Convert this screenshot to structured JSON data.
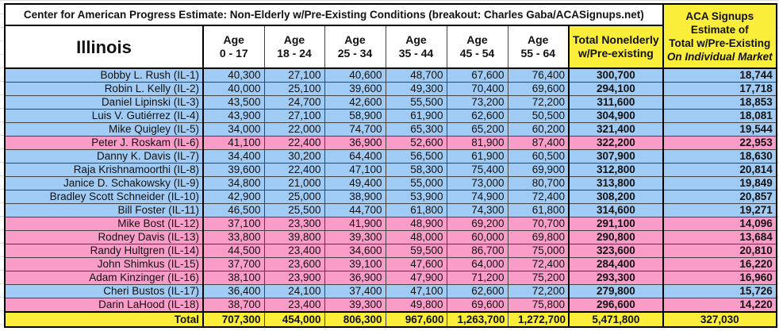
{
  "title": "Center for American Progress Estimate: Non-Elderly w/Pre-Existing Conditions (breakout: Charles Gaba/ACASignups.net)",
  "aca_header": [
    "ACA Signups",
    "Estimate of",
    "Total w/Pre-Existing",
    "On Individual Market"
  ],
  "headers": {
    "state": "Illinois",
    "ages": [
      [
        "Age",
        "0 - 17"
      ],
      [
        "Age",
        "18 - 24"
      ],
      [
        "Age",
        "25 - 34"
      ],
      [
        "Age",
        "35 - 44"
      ],
      [
        "Age",
        "45 - 54"
      ],
      [
        "Age",
        "55 - 64"
      ]
    ],
    "total": [
      "Total Nonelderly",
      "w/Pre-existing"
    ]
  },
  "colors": {
    "democrat": "#a0cbf4",
    "republican": "#f99cc8",
    "highlight": "#fbee3a"
  },
  "rows": [
    {
      "name": "Bobby L. Rush (IL-1)",
      "party": "blue",
      "values": [
        "40,300",
        "27,100",
        "40,600",
        "48,700",
        "67,600",
        "76,400"
      ],
      "total": "300,700",
      "aca": "18,744"
    },
    {
      "name": "Robin L. Kelly (IL-2)",
      "party": "blue",
      "values": [
        "40,000",
        "25,100",
        "39,600",
        "49,300",
        "70,400",
        "69,600"
      ],
      "total": "294,100",
      "aca": "17,718"
    },
    {
      "name": "Daniel Lipinski (IL-3)",
      "party": "blue",
      "values": [
        "43,500",
        "24,700",
        "42,600",
        "55,500",
        "73,200",
        "72,200"
      ],
      "total": "311,600",
      "aca": "18,853"
    },
    {
      "name": "Luis V. Gutiérrez (IL-4)",
      "party": "blue",
      "values": [
        "43,900",
        "27,100",
        "58,900",
        "61,900",
        "62,600",
        "50,500"
      ],
      "total": "304,900",
      "aca": "18,081"
    },
    {
      "name": "Mike Quigley (IL-5)",
      "party": "blue",
      "values": [
        "34,000",
        "22,000",
        "74,700",
        "65,300",
        "65,200",
        "60,200"
      ],
      "total": "321,400",
      "aca": "19,544"
    },
    {
      "name": "Peter J. Roskam (IL-6)",
      "party": "pink",
      "values": [
        "41,100",
        "22,400",
        "36,900",
        "52,600",
        "81,900",
        "87,400"
      ],
      "total": "322,200",
      "aca": "22,953"
    },
    {
      "name": "Danny K. Davis (IL-7)",
      "party": "blue",
      "values": [
        "34,400",
        "30,200",
        "64,400",
        "56,500",
        "61,900",
        "60,500"
      ],
      "total": "307,900",
      "aca": "18,630"
    },
    {
      "name": "Raja Krishnamoorthi (IL-8)",
      "party": "blue",
      "values": [
        "39,600",
        "22,400",
        "47,100",
        "58,300",
        "75,400",
        "69,900"
      ],
      "total": "312,800",
      "aca": "20,814"
    },
    {
      "name": "Janice D. Schakowsky (IL-9)",
      "party": "blue",
      "values": [
        "34,800",
        "21,000",
        "49,400",
        "55,000",
        "73,000",
        "80,700"
      ],
      "total": "313,800",
      "aca": "19,849"
    },
    {
      "name": "Bradley Scott Schneider (IL-10)",
      "party": "blue",
      "values": [
        "42,900",
        "25,000",
        "38,900",
        "53,900",
        "74,900",
        "72,400"
      ],
      "total": "308,200",
      "aca": "20,857"
    },
    {
      "name": "Bill Foster (IL-11)",
      "party": "blue",
      "values": [
        "46,500",
        "25,500",
        "44,700",
        "61,800",
        "74,300",
        "61,800"
      ],
      "total": "314,600",
      "aca": "19,271"
    },
    {
      "name": "Mike Bost (IL-12)",
      "party": "pink",
      "values": [
        "37,100",
        "23,300",
        "41,900",
        "48,900",
        "69,200",
        "70,700"
      ],
      "total": "291,100",
      "aca": "14,096"
    },
    {
      "name": "Rodney Davis (IL-13)",
      "party": "pink",
      "values": [
        "33,800",
        "39,800",
        "39,300",
        "48,000",
        "60,000",
        "69,800"
      ],
      "total": "290,800",
      "aca": "13,684"
    },
    {
      "name": "Randy Hultgren (IL-14)",
      "party": "pink",
      "values": [
        "44,500",
        "23,400",
        "34,600",
        "59,500",
        "86,700",
        "75,000"
      ],
      "total": "323,600",
      "aca": "20,810"
    },
    {
      "name": "John Shimkus (IL-15)",
      "party": "pink",
      "values": [
        "37,700",
        "23,600",
        "39,100",
        "47,600",
        "64,000",
        "72,400"
      ],
      "total": "284,400",
      "aca": "16,220"
    },
    {
      "name": "Adam Kinzinger (IL-16)",
      "party": "pink",
      "values": [
        "38,100",
        "23,900",
        "36,900",
        "47,900",
        "71,200",
        "75,200"
      ],
      "total": "293,300",
      "aca": "16,960"
    },
    {
      "name": "Cheri Bustos (IL-17)",
      "party": "blue",
      "values": [
        "36,400",
        "24,100",
        "37,400",
        "47,100",
        "62,600",
        "72,200"
      ],
      "total": "279,800",
      "aca": "15,726"
    },
    {
      "name": "Darin LaHood (IL-18)",
      "party": "pink",
      "values": [
        "38,700",
        "23,400",
        "39,300",
        "49,800",
        "69,600",
        "75,800"
      ],
      "total": "296,600",
      "aca": "14,220"
    }
  ],
  "totals": {
    "label": "Total",
    "values": [
      "707,300",
      "454,000",
      "806,300",
      "967,600",
      "1,263,700",
      "1,272,700"
    ],
    "total": "5,471,800",
    "aca": "327,030"
  }
}
